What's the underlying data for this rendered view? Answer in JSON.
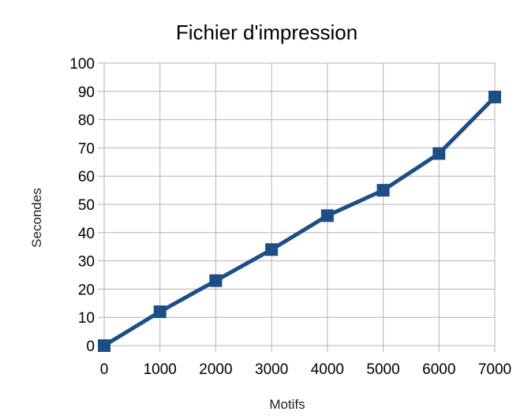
{
  "chart_data": {
    "type": "line",
    "title": "Fichier d'impression",
    "xlabel": "Motifs",
    "ylabel": "Secondes",
    "x": [
      0,
      1000,
      2000,
      3000,
      4000,
      5000,
      6000,
      7000
    ],
    "xlim": [
      0,
      7000
    ],
    "ylim": [
      0,
      100
    ],
    "x_ticks": [
      0,
      1000,
      2000,
      3000,
      4000,
      5000,
      6000,
      7000
    ],
    "y_ticks": [
      0,
      10,
      20,
      30,
      40,
      50,
      60,
      70,
      80,
      90,
      100
    ],
    "grid": true,
    "legend": "none",
    "marker": "square",
    "series": [
      {
        "values": [
          0,
          12,
          23,
          34,
          46,
          55,
          68,
          88
        ],
        "color": "#1c4f86"
      }
    ]
  }
}
